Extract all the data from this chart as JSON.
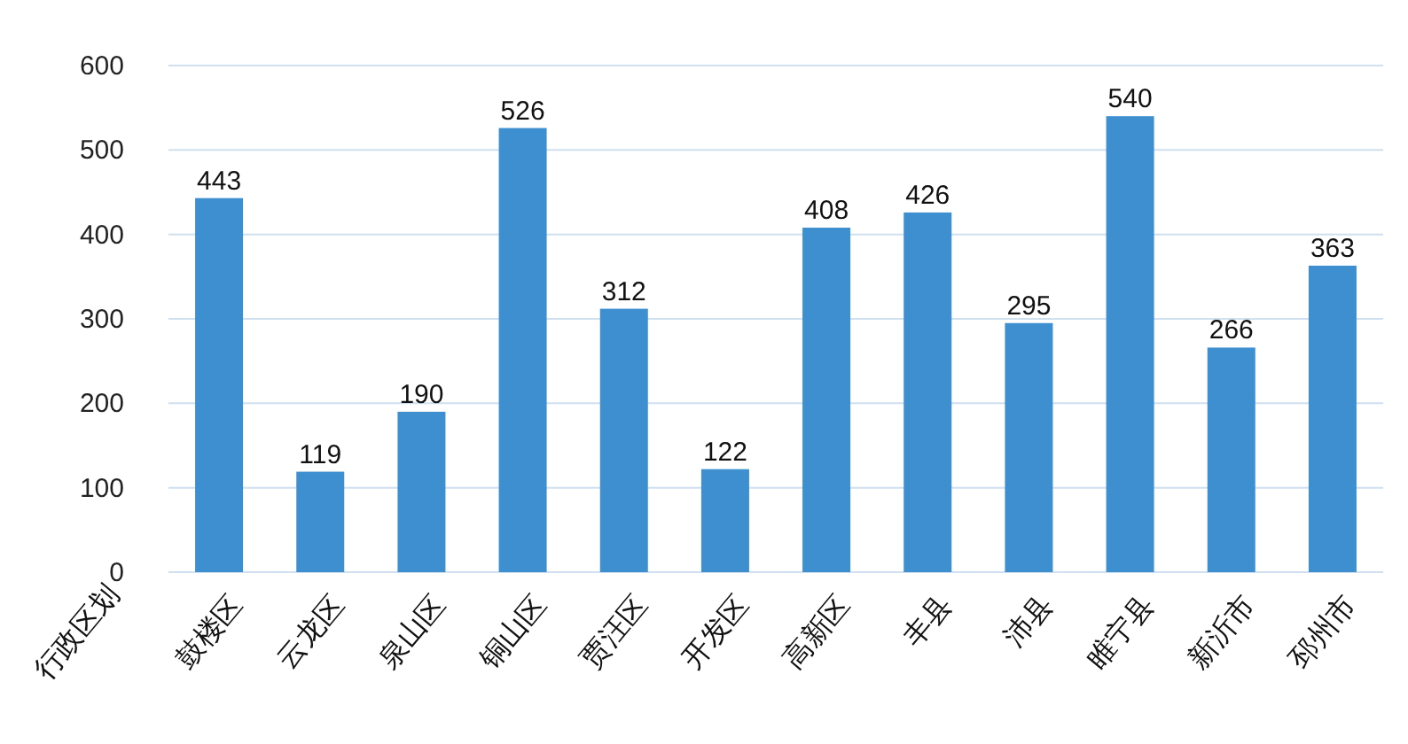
{
  "chart_data": {
    "type": "bar",
    "xlabel": "行政区划",
    "categories": [
      "鼓楼区",
      "云龙区",
      "泉山区",
      "铜山区",
      "贾汪区",
      "开发区",
      "高新区",
      "丰县",
      "沛县",
      "睢宁县",
      "新沂市",
      "邳州市"
    ],
    "values": [
      443,
      119,
      190,
      526,
      312,
      122,
      408,
      426,
      295,
      540,
      266,
      363
    ],
    "color": "#3d8fd0",
    "ylim": [
      0,
      600
    ],
    "yticks": [
      0,
      100,
      200,
      300,
      400,
      500,
      600
    ],
    "grid": "y",
    "data_labels": true
  }
}
